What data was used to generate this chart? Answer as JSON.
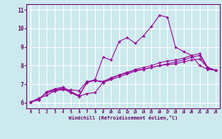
{
  "title": "",
  "xlabel": "Windchill (Refroidissement éolien,°C)",
  "ylabel": "",
  "background_color": "#cce9ed",
  "grid_color": "#ffffff",
  "line_color": "#990099",
  "xlim": [
    -0.5,
    23.5
  ],
  "ylim": [
    5.7,
    11.3
  ],
  "yticks": [
    6,
    7,
    8,
    9,
    10,
    11
  ],
  "xticks": [
    0,
    1,
    2,
    3,
    4,
    5,
    6,
    7,
    8,
    9,
    10,
    11,
    12,
    13,
    14,
    15,
    16,
    17,
    18,
    19,
    20,
    21,
    22,
    23
  ],
  "series": [
    [
      6.05,
      6.25,
      6.4,
      6.65,
      6.7,
      6.7,
      6.65,
      7.15,
      7.2,
      7.1,
      7.3,
      7.5,
      7.65,
      7.75,
      7.8,
      7.9,
      8.0,
      8.05,
      8.1,
      8.2,
      8.3,
      8.35,
      7.9,
      7.75
    ],
    [
      6.05,
      6.2,
      6.55,
      6.7,
      6.8,
      6.55,
      6.35,
      7.1,
      7.25,
      8.45,
      8.3,
      9.3,
      9.5,
      9.2,
      9.6,
      10.1,
      10.7,
      10.6,
      9.0,
      8.75,
      8.55,
      8.0,
      7.8,
      7.75
    ],
    [
      6.05,
      6.15,
      6.6,
      6.75,
      6.85,
      6.6,
      6.4,
      7.1,
      7.2,
      7.15,
      7.35,
      7.5,
      7.6,
      7.8,
      7.9,
      8.0,
      8.15,
      8.25,
      8.3,
      8.4,
      8.55,
      8.65,
      7.9,
      7.75
    ],
    [
      6.05,
      6.2,
      6.55,
      6.65,
      6.75,
      6.55,
      6.35,
      6.5,
      6.55,
      7.1,
      7.25,
      7.4,
      7.55,
      7.7,
      7.8,
      7.9,
      8.0,
      8.1,
      8.2,
      8.3,
      8.45,
      8.55,
      7.85,
      7.75
    ]
  ]
}
